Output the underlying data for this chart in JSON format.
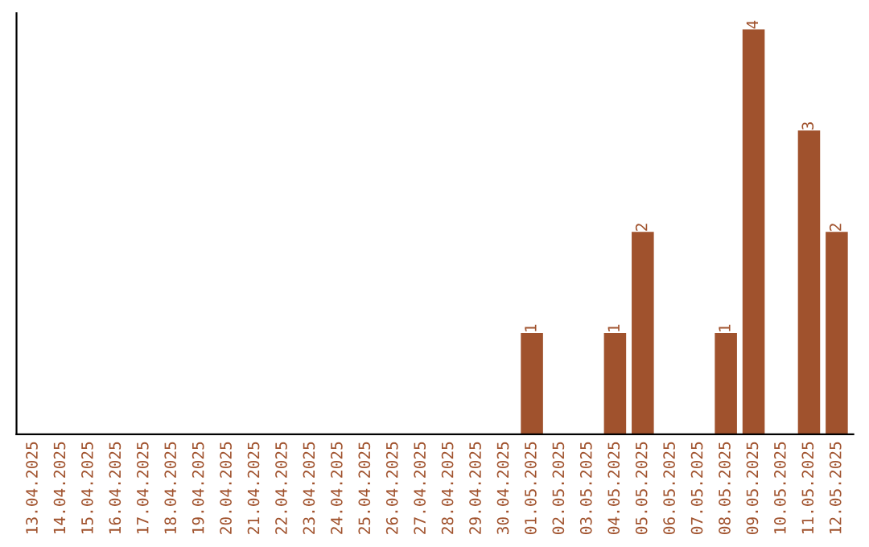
{
  "chart_data": {
    "type": "bar",
    "categories": [
      "13.04.2025",
      "14.04.2025",
      "15.04.2025",
      "16.04.2025",
      "17.04.2025",
      "18.04.2025",
      "19.04.2025",
      "20.04.2025",
      "21.04.2025",
      "22.04.2025",
      "23.04.2025",
      "24.04.2025",
      "25.04.2025",
      "26.04.2025",
      "27.04.2025",
      "28.04.2025",
      "29.04.2025",
      "30.04.2025",
      "01.05.2025",
      "02.05.2025",
      "03.05.2025",
      "04.05.2025",
      "05.05.2025",
      "06.05.2025",
      "07.05.2025",
      "08.05.2025",
      "09.05.2025",
      "10.05.2025",
      "11.05.2025",
      "12.05.2025"
    ],
    "values": [
      null,
      null,
      null,
      null,
      null,
      null,
      null,
      null,
      null,
      null,
      null,
      null,
      null,
      null,
      null,
      null,
      null,
      null,
      1,
      null,
      null,
      1,
      2,
      null,
      null,
      1,
      4,
      null,
      3,
      2
    ],
    "color": "#a0522d",
    "data_labels": true,
    "tick_labels": "x",
    "grid": false,
    "legend": false
  }
}
